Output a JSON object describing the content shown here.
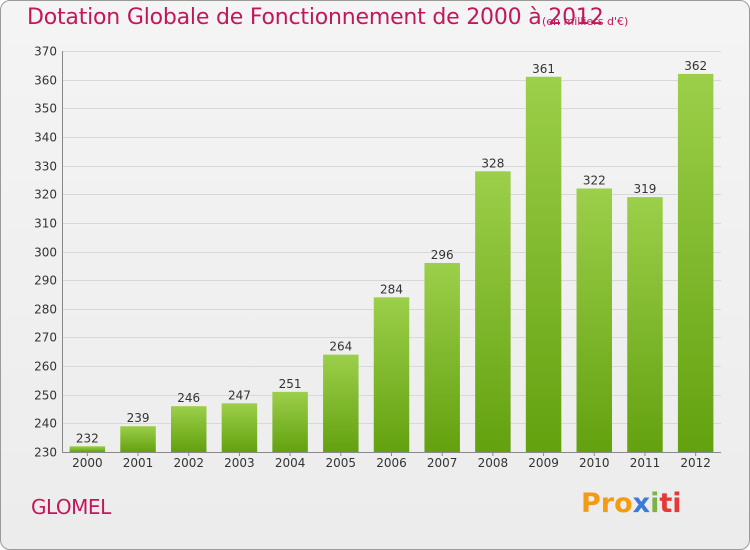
{
  "header": {
    "title": "Dotation Globale de Fonctionnement de 2000 à 2012",
    "unit": "(en milliers d'€)"
  },
  "footer": {
    "commune": "GLOMEL",
    "logo": [
      "Pro",
      "x",
      "i",
      "ti"
    ]
  },
  "colors": {
    "bar_top": "#9ccf4a",
    "bar_bottom": "#63a10f",
    "grid": "#d8d8d8",
    "title": "#c2185b"
  },
  "chart_data": {
    "type": "bar",
    "categories": [
      "2000",
      "2001",
      "2002",
      "2003",
      "2004",
      "2005",
      "2006",
      "2007",
      "2008",
      "2009",
      "2010",
      "2011",
      "2012"
    ],
    "values": [
      232,
      239,
      246,
      247,
      251,
      264,
      284,
      296,
      328,
      361,
      322,
      319,
      362
    ],
    "title": "Dotation Globale de Fonctionnement de 2000 à 2012",
    "ylim": [
      230,
      370
    ],
    "yticks": [
      230,
      240,
      250,
      260,
      270,
      280,
      290,
      300,
      310,
      320,
      330,
      340,
      350,
      360,
      370
    ],
    "grid": true
  }
}
